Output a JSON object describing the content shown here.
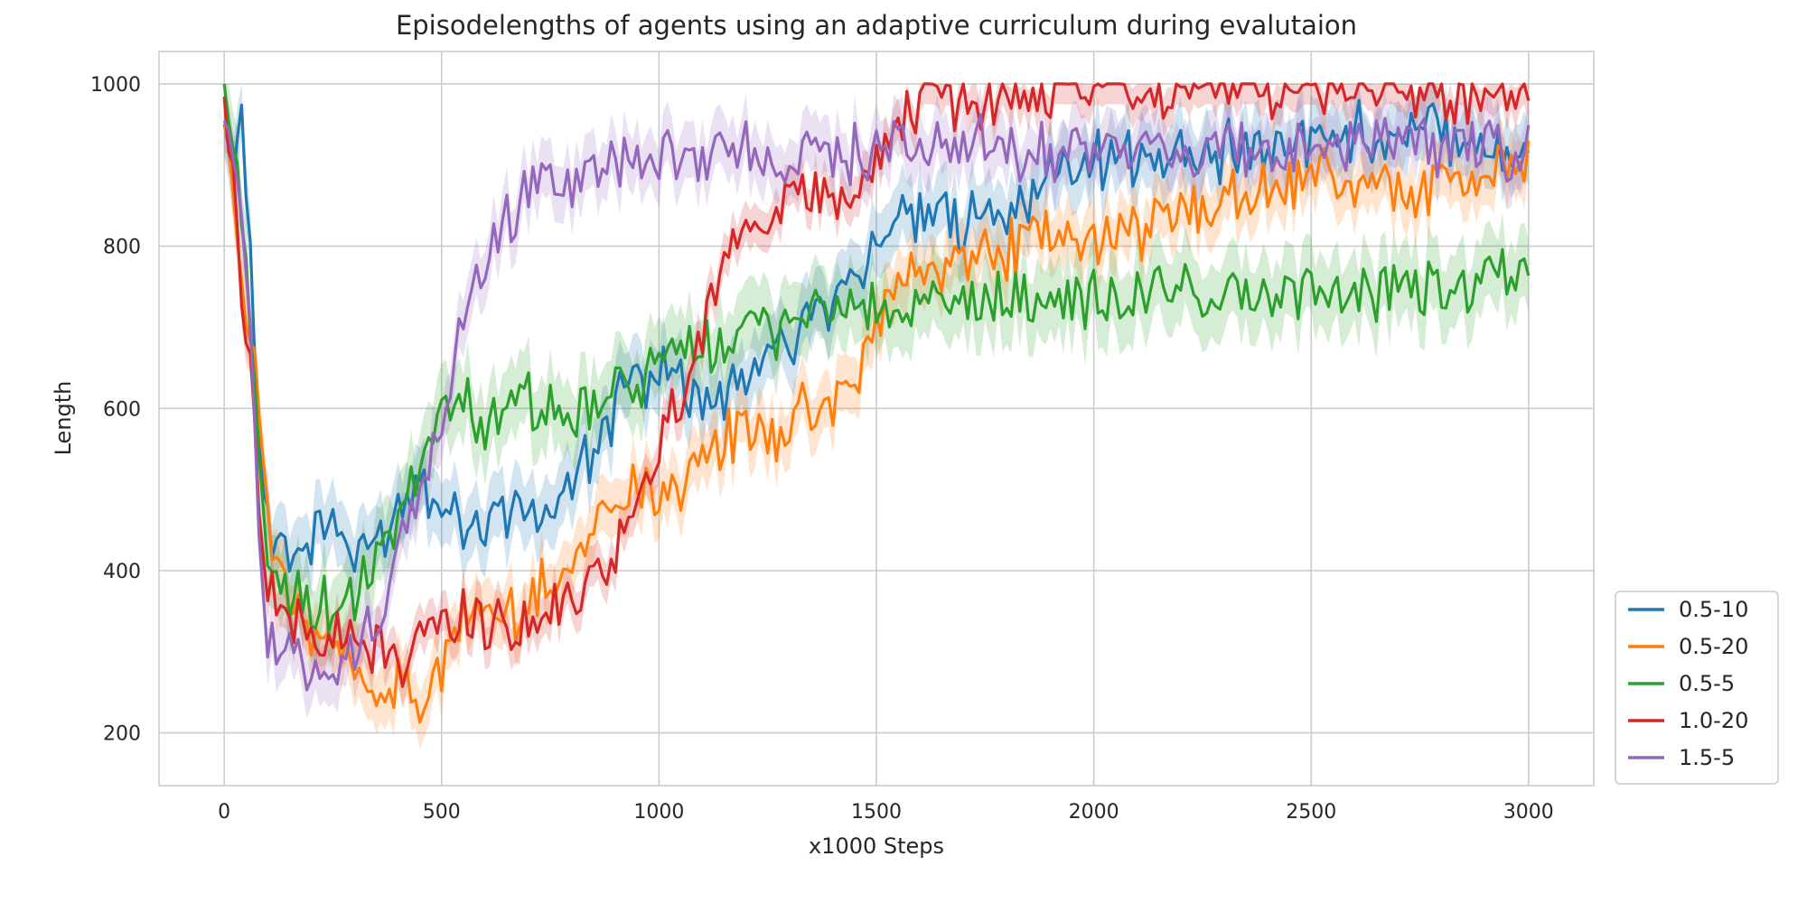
{
  "chart_data": {
    "type": "line",
    "title": "Episodelengths of agents using an adaptive curriculum during evalutaion",
    "xlabel": "x1000 Steps",
    "ylabel": "Length",
    "xlim": [
      -150,
      3150
    ],
    "ylim": [
      135,
      1040
    ],
    "xticks": [
      0,
      500,
      1000,
      1500,
      2000,
      2500,
      3000
    ],
    "yticks": [
      200,
      400,
      600,
      800,
      1000
    ],
    "grid": true,
    "legend_position": "lower-right, outside plot",
    "series": [
      {
        "name": "0.5-10",
        "color": "#1f77b4",
        "band": 40,
        "x": [
          0,
          20,
          40,
          60,
          80,
          100,
          150,
          200,
          250,
          300,
          350,
          400,
          450,
          500,
          550,
          600,
          650,
          700,
          750,
          800,
          850,
          900,
          950,
          1000,
          1050,
          1100,
          1150,
          1200,
          1250,
          1300,
          1350,
          1400,
          1450,
          1500,
          1550,
          1600,
          1650,
          1700,
          1750,
          1800,
          1850,
          1900,
          1950,
          2000,
          2050,
          2100,
          2200,
          2300,
          2400,
          2500,
          2600,
          2700,
          2800,
          2900,
          3000
        ],
        "y": [
          940,
          900,
          970,
          800,
          560,
          450,
          420,
          440,
          470,
          400,
          440,
          470,
          520,
          490,
          460,
          460,
          480,
          470,
          470,
          500,
          540,
          600,
          640,
          650,
          640,
          600,
          620,
          640,
          660,
          690,
          720,
          740,
          770,
          800,
          830,
          820,
          840,
          830,
          850,
          840,
          860,
          900,
          910,
          900,
          905,
          910,
          915,
          920,
          925,
          930,
          940,
          940,
          945,
          930,
          920
        ]
      },
      {
        "name": "0.5-20",
        "color": "#ff7f0e",
        "band": 35,
        "x": [
          0,
          20,
          40,
          60,
          80,
          100,
          150,
          200,
          250,
          300,
          350,
          400,
          450,
          500,
          550,
          600,
          650,
          700,
          750,
          800,
          850,
          900,
          950,
          1000,
          1050,
          1100,
          1150,
          1200,
          1250,
          1300,
          1350,
          1400,
          1450,
          1500,
          1550,
          1600,
          1650,
          1700,
          1750,
          1800,
          1850,
          1900,
          1950,
          2000,
          2050,
          2100,
          2200,
          2300,
          2400,
          2500,
          2600,
          2700,
          2800,
          2900,
          3000
        ],
        "y": [
          970,
          870,
          760,
          700,
          610,
          450,
          360,
          320,
          300,
          280,
          250,
          260,
          240,
          280,
          340,
          350,
          340,
          360,
          390,
          410,
          450,
          490,
          500,
          500,
          510,
          530,
          560,
          570,
          560,
          580,
          600,
          610,
          620,
          700,
          760,
          770,
          780,
          780,
          790,
          800,
          810,
          805,
          800,
          800,
          810,
          820,
          840,
          860,
          870,
          880,
          880,
          870,
          880,
          890,
          895
        ]
      },
      {
        "name": "0.5-5",
        "color": "#2ca02c",
        "band": 45,
        "x": [
          0,
          20,
          40,
          60,
          80,
          100,
          150,
          200,
          250,
          300,
          350,
          400,
          450,
          500,
          550,
          600,
          650,
          700,
          750,
          800,
          850,
          900,
          950,
          1000,
          1050,
          1100,
          1150,
          1200,
          1250,
          1300,
          1350,
          1400,
          1450,
          1500,
          1550,
          1600,
          1650,
          1700,
          1750,
          1800,
          1850,
          1900,
          1950,
          2000,
          2050,
          2100,
          2200,
          2300,
          2400,
          2500,
          2600,
          2700,
          2800,
          2900,
          3000
        ],
        "y": [
          1000,
          930,
          850,
          700,
          560,
          390,
          370,
          360,
          350,
          360,
          400,
          470,
          520,
          620,
          600,
          590,
          600,
          610,
          590,
          580,
          600,
          620,
          640,
          650,
          660,
          670,
          690,
          700,
          700,
          710,
          720,
          720,
          730,
          720,
          710,
          715,
          720,
          720,
          730,
          730,
          735,
          735,
          738,
          740,
          735,
          740,
          745,
          740,
          745,
          740,
          745,
          745,
          750,
          745,
          770
        ]
      },
      {
        "name": "1.0-20",
        "color": "#d62728",
        "band": 25,
        "x": [
          0,
          20,
          40,
          60,
          80,
          100,
          150,
          200,
          250,
          300,
          350,
          400,
          450,
          500,
          550,
          600,
          650,
          700,
          750,
          800,
          850,
          900,
          950,
          1000,
          1050,
          1100,
          1150,
          1200,
          1250,
          1300,
          1350,
          1400,
          1450,
          1500,
          1550,
          1600,
          1650,
          1700,
          1750,
          1800,
          1850,
          1900,
          1950,
          2000,
          2050,
          2100,
          2200,
          2300,
          2400,
          2500,
          2600,
          2700,
          2800,
          2900,
          3000
        ],
        "y": [
          980,
          880,
          750,
          650,
          500,
          380,
          330,
          320,
          310,
          310,
          300,
          290,
          320,
          320,
          350,
          330,
          340,
          330,
          350,
          360,
          400,
          430,
          470,
          560,
          600,
          700,
          790,
          830,
          840,
          850,
          860,
          860,
          860,
          900,
          960,
          975,
          975,
          980,
          980,
          980,
          985,
          985,
          990,
          985,
          990,
          990,
          995,
          995,
          995,
          995,
          995,
          995,
          990,
          985,
          975
        ]
      },
      {
        "name": "1.5-5",
        "color": "#9467bd",
        "band": 35,
        "x": [
          0,
          20,
          40,
          60,
          80,
          100,
          150,
          200,
          250,
          300,
          350,
          400,
          450,
          500,
          550,
          600,
          650,
          700,
          750,
          800,
          850,
          900,
          950,
          1000,
          1050,
          1100,
          1150,
          1200,
          1250,
          1300,
          1350,
          1400,
          1450,
          1500,
          1550,
          1600,
          1650,
          1700,
          1750,
          1800,
          1850,
          1900,
          1950,
          2000,
          2050,
          2100,
          2200,
          2300,
          2400,
          2500,
          2600,
          2700,
          2800,
          2900,
          3000
        ],
        "y": [
          950,
          900,
          840,
          720,
          450,
          300,
          300,
          290,
          280,
          300,
          330,
          420,
          500,
          580,
          700,
          780,
          830,
          870,
          880,
          880,
          900,
          910,
          910,
          910,
          915,
          915,
          915,
          915,
          915,
          915,
          918,
          920,
          918,
          920,
          920,
          920,
          920,
          920,
          920,
          920,
          920,
          920,
          920,
          918,
          918,
          918,
          920,
          920,
          920,
          920,
          922,
          922,
          922,
          922,
          920
        ]
      }
    ]
  }
}
